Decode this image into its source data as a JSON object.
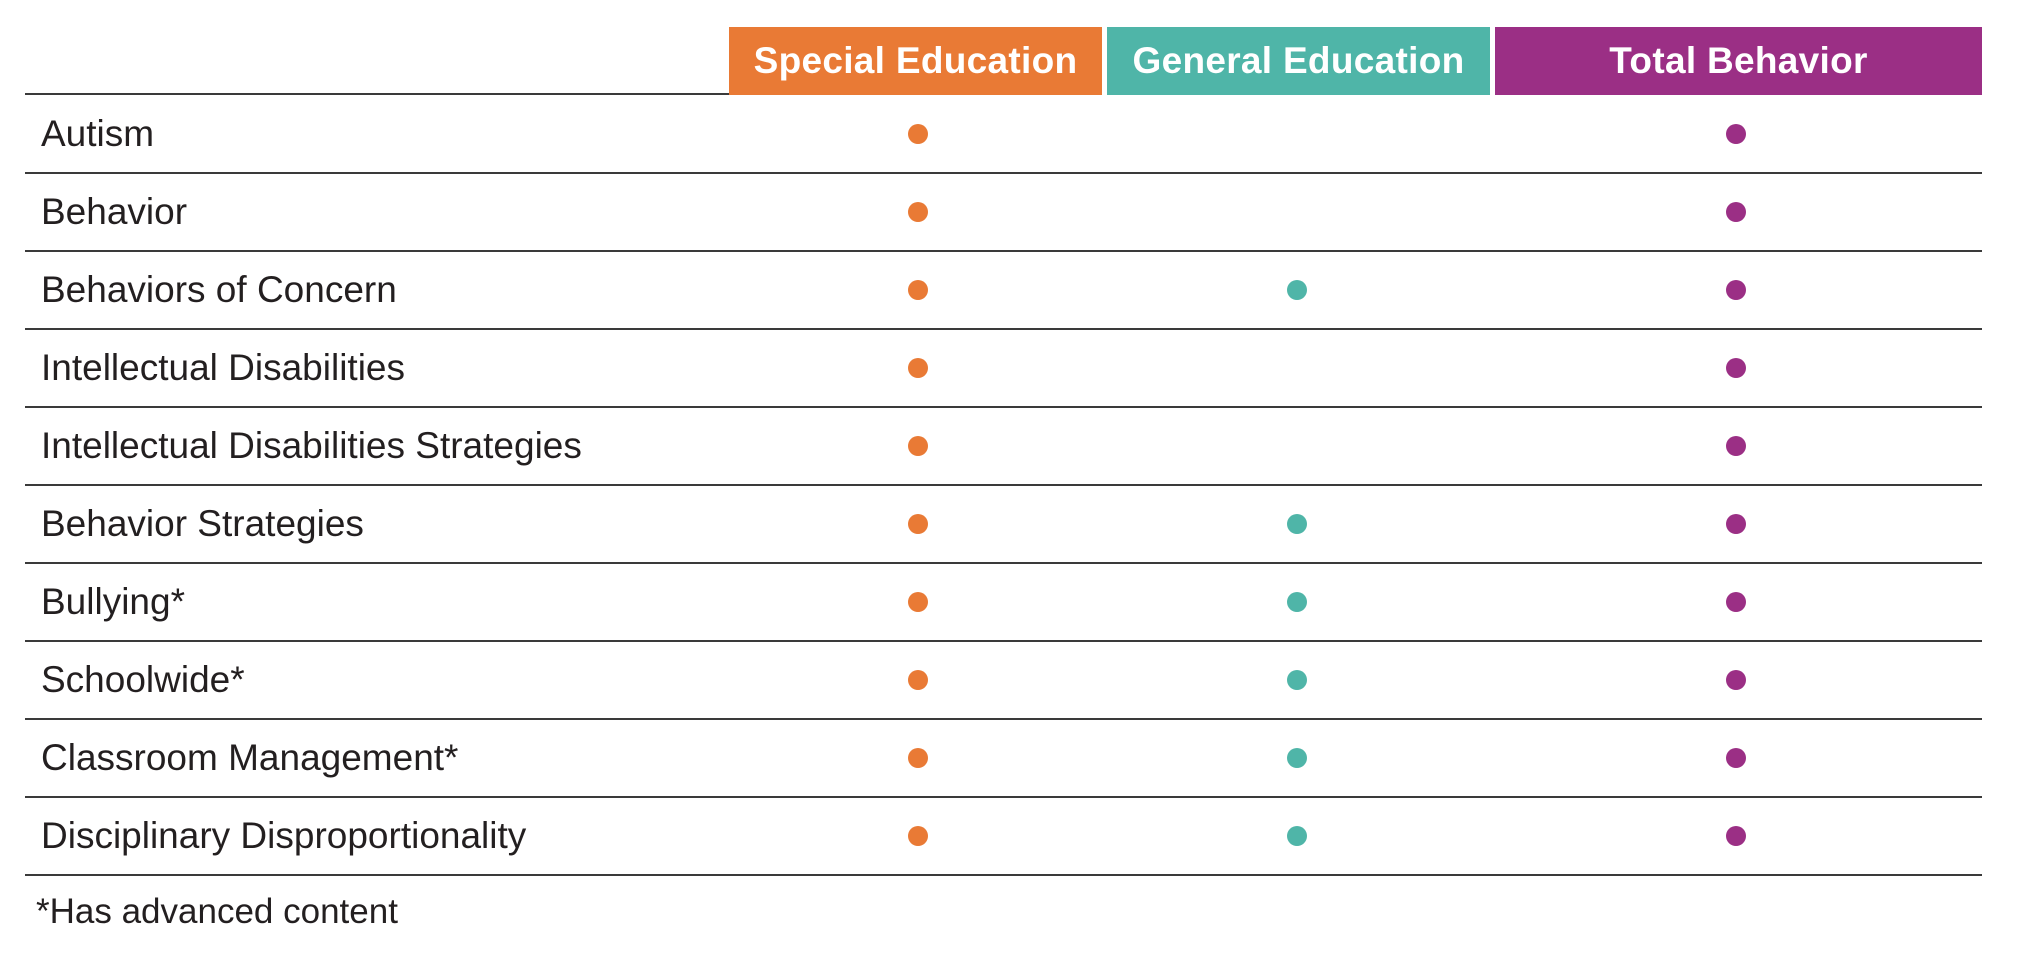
{
  "headers": {
    "special": {
      "label": "Special Education",
      "color": "#E97A35"
    },
    "general": {
      "label": "General Education",
      "color": "#4FB5A8"
    },
    "total": {
      "label": "Total Behavior",
      "color": "#9B2F85"
    }
  },
  "rows": [
    {
      "label": "Autism",
      "special": true,
      "general": false,
      "total": true
    },
    {
      "label": "Behavior",
      "special": true,
      "general": false,
      "total": true
    },
    {
      "label": "Behaviors of Concern",
      "special": true,
      "general": true,
      "total": true
    },
    {
      "label": "Intellectual Disabilities",
      "special": true,
      "general": false,
      "total": true
    },
    {
      "label": "Intellectual Disabilities Strategies",
      "special": true,
      "general": false,
      "total": true
    },
    {
      "label": "Behavior Strategies",
      "special": true,
      "general": true,
      "total": true
    },
    {
      "label": "Bullying*",
      "special": true,
      "general": true,
      "total": true
    },
    {
      "label": "Schoolwide*",
      "special": true,
      "general": true,
      "total": true
    },
    {
      "label": "Classroom Management*",
      "special": true,
      "general": true,
      "total": true
    },
    {
      "label": "Disciplinary Disproportionality",
      "special": true,
      "general": true,
      "total": true
    }
  ],
  "footnote": "*Has advanced content"
}
